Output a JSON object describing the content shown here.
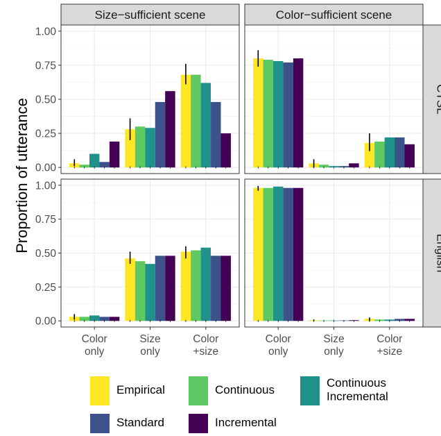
{
  "chart_data": {
    "type": "bar",
    "ylabel": "Proportion of utterance",
    "xlabel": "",
    "ylim": [
      0,
      1
    ],
    "y_ticks": [
      "0.00",
      "0.25",
      "0.50",
      "0.75",
      "1.00"
    ],
    "categories": [
      "Color\nonly",
      "Size\nonly",
      "Color\n+size"
    ],
    "col_facets": [
      "Size−sufficient scene",
      "Color−sufficient scene"
    ],
    "row_facets": [
      "CTSL",
      "English"
    ],
    "series": [
      {
        "name": "Empirical",
        "color": "#FDE725"
      },
      {
        "name": "Continuous",
        "color": "#5EC962"
      },
      {
        "name": "Continuous\nIncremental",
        "color": "#21918C"
      },
      {
        "name": "Standard",
        "color": "#3B528B"
      },
      {
        "name": "Incremental",
        "color": "#440154"
      }
    ],
    "panels": [
      {
        "col": 0,
        "row": 0,
        "values": [
          [
            0.03,
            0.28,
            0.68
          ],
          [
            0.02,
            0.3,
            0.68
          ],
          [
            0.1,
            0.29,
            0.62
          ],
          [
            0.04,
            0.48,
            0.48
          ],
          [
            0.19,
            0.56,
            0.25
          ]
        ],
        "error": [
          [
            0.01,
            0.06
          ],
          [
            0.2,
            0.36
          ],
          [
            0.61,
            0.76
          ]
        ]
      },
      {
        "col": 1,
        "row": 0,
        "values": [
          [
            0.8,
            0.03,
            0.18
          ],
          [
            0.79,
            0.02,
            0.19
          ],
          [
            0.78,
            0.01,
            0.22
          ],
          [
            0.77,
            0.01,
            0.22
          ],
          [
            0.8,
            0.03,
            0.17
          ]
        ],
        "error": [
          [
            0.74,
            0.86
          ],
          [
            0.0,
            0.06
          ],
          [
            0.12,
            0.25
          ]
        ]
      },
      {
        "col": 0,
        "row": 1,
        "values": [
          [
            0.03,
            0.46,
            0.51
          ],
          [
            0.03,
            0.44,
            0.52
          ],
          [
            0.04,
            0.42,
            0.54
          ],
          [
            0.03,
            0.48,
            0.48
          ],
          [
            0.03,
            0.48,
            0.48
          ]
        ],
        "error": [
          [
            0.01,
            0.05
          ],
          [
            0.42,
            0.51
          ],
          [
            0.46,
            0.55
          ]
        ]
      },
      {
        "col": 1,
        "row": 1,
        "values": [
          [
            0.98,
            0.005,
            0.015
          ],
          [
            0.98,
            0.003,
            0.01
          ],
          [
            0.99,
            0.003,
            0.01
          ],
          [
            0.98,
            0.003,
            0.015
          ],
          [
            0.98,
            0.005,
            0.015
          ]
        ],
        "error": [
          [
            0.96,
            0.995
          ],
          [
            0.0,
            0.01
          ],
          [
            0.0,
            0.025
          ]
        ]
      }
    ],
    "legend": {
      "position": "bottom",
      "items": [
        {
          "label": "Empirical",
          "color": "#FDE725"
        },
        {
          "label": "Continuous",
          "color": "#5EC962"
        },
        {
          "label": "Continuous\nIncremental",
          "color": "#21918C"
        },
        {
          "label": "Standard",
          "color": "#3B528B"
        },
        {
          "label": "Incremental",
          "color": "#440154"
        }
      ]
    },
    "grid": true
  }
}
